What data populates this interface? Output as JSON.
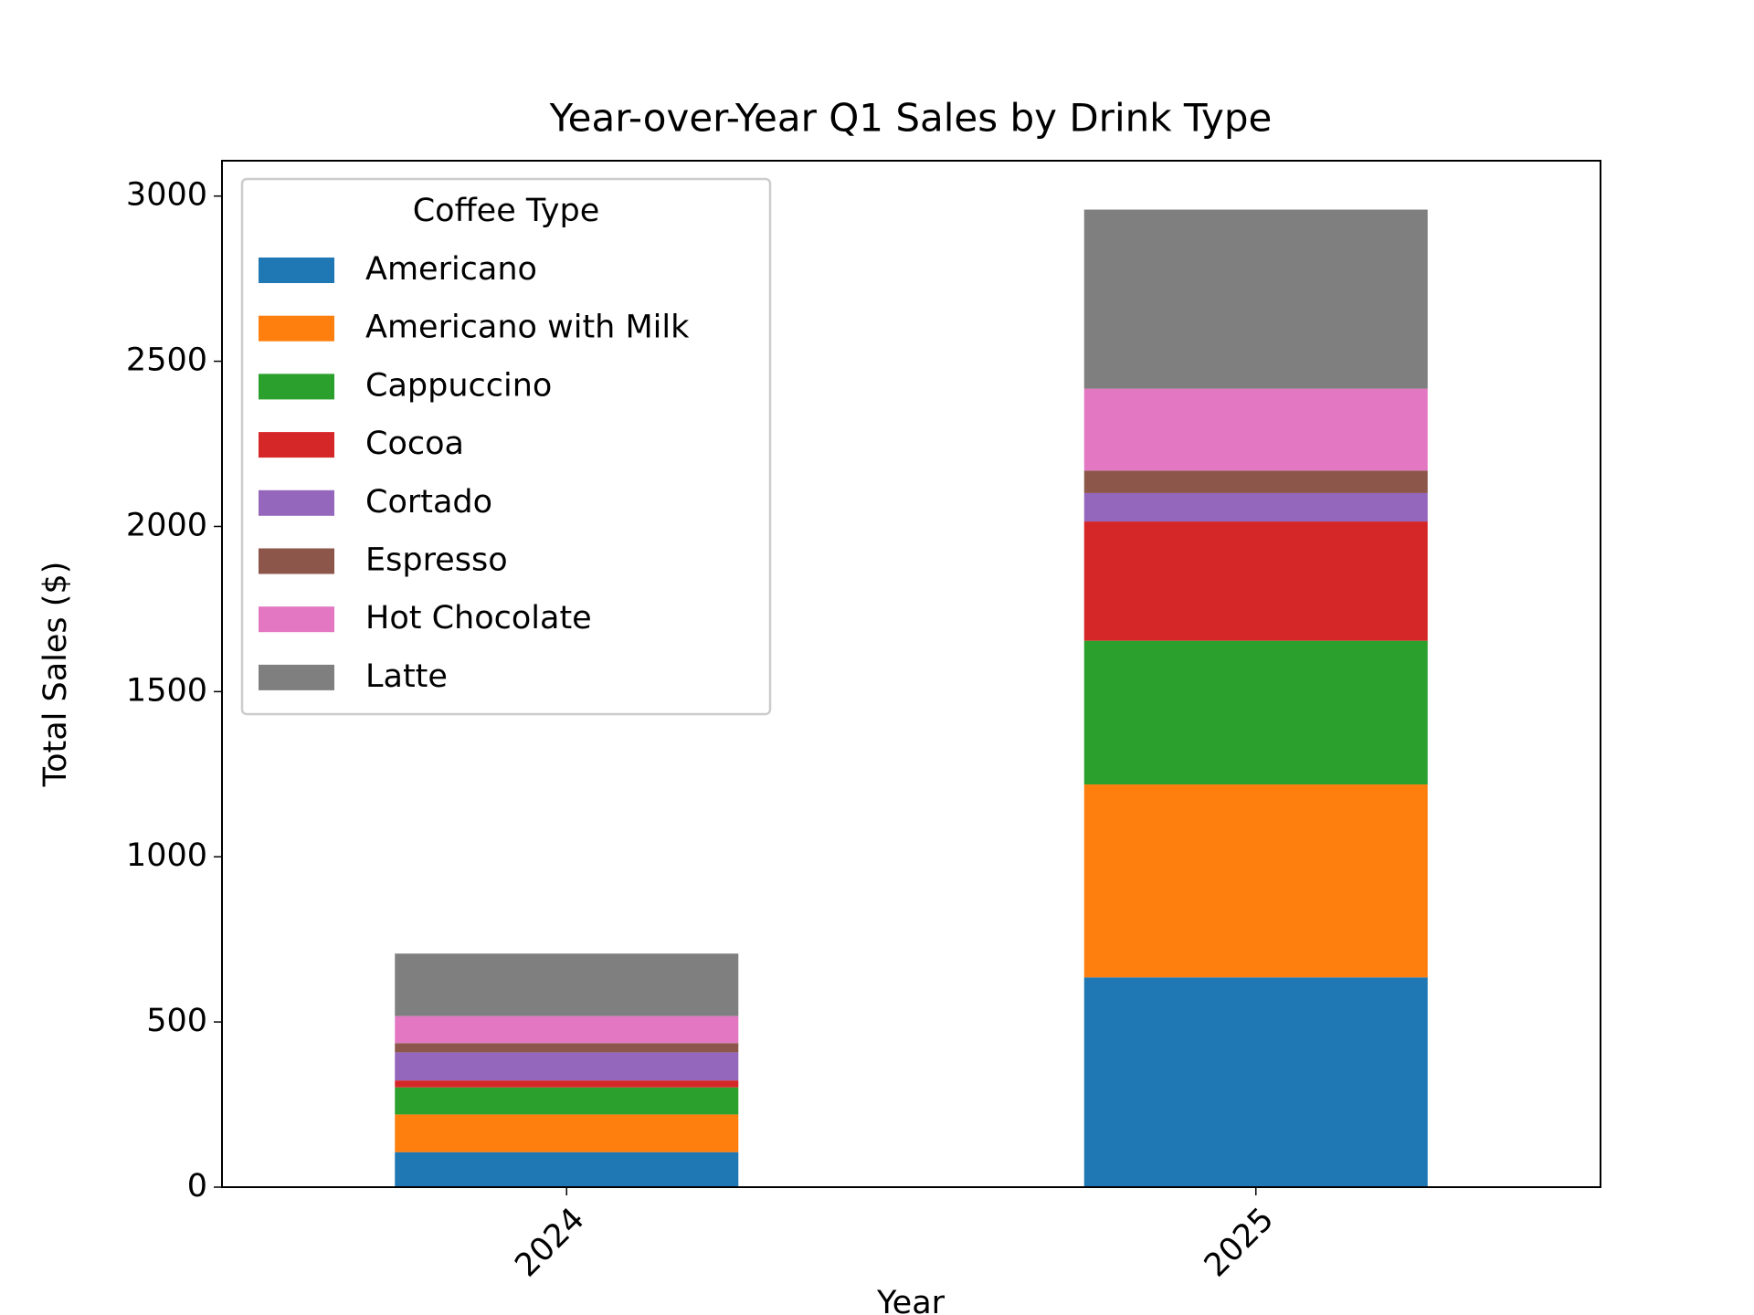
{
  "chart_data": {
    "type": "stacked_bar",
    "title": "Year-over-Year Q1 Sales by Drink Type",
    "xlabel": "Year",
    "ylabel": "Total Sales ($)",
    "categories": [
      "2024",
      "2025"
    ],
    "legend_title": "Coffee Type",
    "legend_loc": "upper left",
    "series": [
      {
        "name": "Americano",
        "color": "#1f77b4",
        "values": [
          106,
          635
        ]
      },
      {
        "name": "Americano with Milk",
        "color": "#ff7f0e",
        "values": [
          114,
          584
        ]
      },
      {
        "name": "Cappuccino",
        "color": "#2ca02c",
        "values": [
          82,
          435
        ]
      },
      {
        "name": "Cocoa",
        "color": "#d62728",
        "values": [
          21,
          361
        ]
      },
      {
        "name": "Cortado",
        "color": "#9467bd",
        "values": [
          85,
          86
        ]
      },
      {
        "name": "Espresso",
        "color": "#8c564b",
        "values": [
          28,
          68
        ]
      },
      {
        "name": "Hot Chocolate",
        "color": "#e377c2",
        "values": [
          82,
          248
        ]
      },
      {
        "name": "Latte",
        "color": "#7f7f7f",
        "values": [
          189,
          542
        ]
      }
    ],
    "ylim": [
      0,
      3107
    ],
    "yticks": [
      0,
      500,
      1000,
      1500,
      2000,
      2500,
      3000
    ],
    "grid": false
  }
}
